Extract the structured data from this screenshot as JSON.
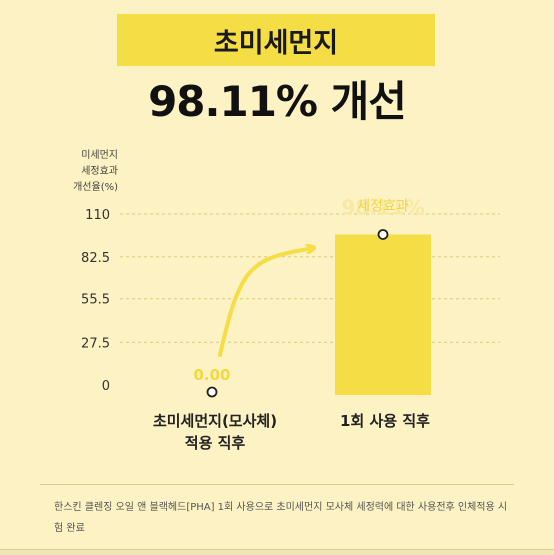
{
  "title_box": "초미세먼지",
  "headline": "98.11% 개선",
  "chart_data": {
    "type": "bar",
    "ylabel_lines": [
      "미세먼지",
      "세정효과",
      "개선율(%)"
    ],
    "yticks": [
      0,
      27.5,
      55.5,
      82.5,
      110
    ],
    "ylim": [
      0,
      110
    ],
    "categories": [
      "초미세먼지(모사체) 적용 직후",
      "1회 사용 직후"
    ],
    "category_lines": [
      [
        "초미세먼지(모사체)",
        "적용 직후"
      ],
      [
        "1회 사용 직후"
      ]
    ],
    "values": [
      0,
      98.11
    ],
    "data_labels": [
      "0.00",
      "98.11%"
    ],
    "annotation": "세정효과",
    "bar_color": "#f5dd45",
    "arrow_color": "#f5dd45"
  },
  "footnote": "한스킨 클렌징 오일 앤 블랙헤드[PHA] 1회 사용으로 초미세먼지 모사체 세정력에 대한 사용전후 인체적용 시험 완료"
}
